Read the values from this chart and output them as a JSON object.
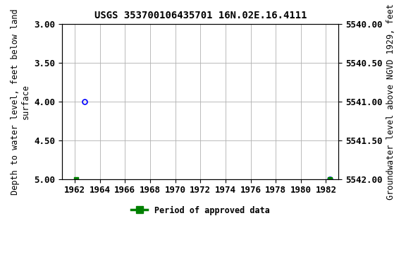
{
  "title": "USGS 353700106435701 16N.02E.16.4111",
  "xlabel": "",
  "ylabel_left": "Depth to water level, feet below land\nsurface",
  "ylabel_right": "Groundwater level above NGVD 1929, feet",
  "xlim": [
    1961,
    1983
  ],
  "ylim_left": [
    3.0,
    5.0
  ],
  "ylim_right_top": 5542.0,
  "ylim_right_bottom": 5540.0,
  "xticks": [
    1962,
    1964,
    1966,
    1968,
    1970,
    1972,
    1974,
    1976,
    1978,
    1980,
    1982
  ],
  "yticks_left": [
    3.0,
    3.5,
    4.0,
    4.5,
    5.0
  ],
  "yticks_right": [
    5542.0,
    5541.5,
    5541.0,
    5540.5,
    5540.0
  ],
  "points_blue_circle": [
    [
      1962.8,
      4.0
    ],
    [
      1982.3,
      5.0
    ]
  ],
  "points_green_square": [
    [
      1962.1,
      5.0
    ],
    [
      1982.3,
      5.0
    ]
  ],
  "legend_label": "Period of approved data",
  "legend_color": "#008000",
  "background_color": "#ffffff",
  "grid_color": "#b0b0b0",
  "title_fontsize": 10,
  "label_fontsize": 8.5,
  "tick_fontsize": 9,
  "font_family": "monospace"
}
